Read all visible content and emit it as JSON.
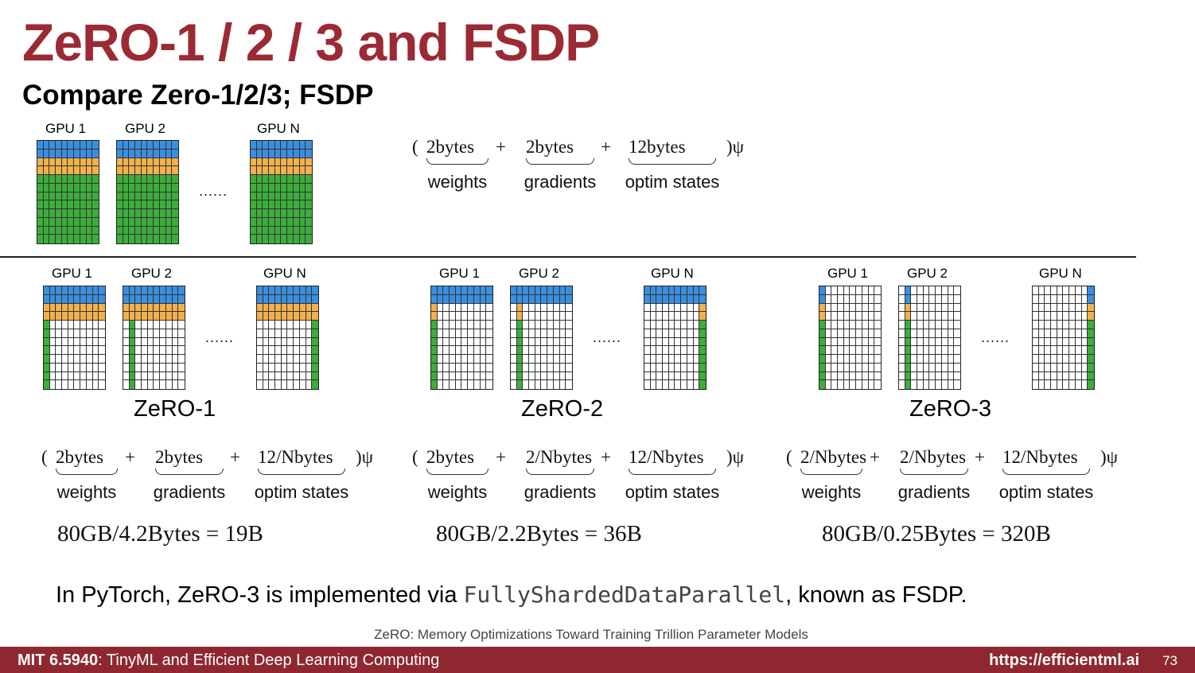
{
  "slide": {
    "title": "ZeRO-1 / 2 / 3 and FSDP",
    "subtitle": "Compare Zero-1/2/3; FSDP"
  },
  "gpu_labels": [
    "GPU 1",
    "GPU 2",
    "GPU N"
  ],
  "ellipsis": "......",
  "colors": {
    "weights": "#3a8fe0",
    "gradients": "#f2b14c",
    "optim": "#3cae3b",
    "empty": "#ffffff",
    "accent": "#9b2a35",
    "footer": "#8f2731"
  },
  "grid_layout": {
    "rows": 12,
    "cols": 10,
    "weight_rows": [
      0,
      1
    ],
    "gradient_rows": [
      2,
      3
    ],
    "optim_rows": [
      4,
      5,
      6,
      7,
      8,
      9,
      10,
      11
    ]
  },
  "baseline": {
    "formula": {
      "open": "( ",
      "terms": [
        {
          "value": "2bytes",
          "label": "weights"
        },
        {
          "value": "2bytes",
          "label": "gradients"
        },
        {
          "value": "12bytes",
          "label": "optim states"
        }
      ],
      "plus": "+",
      "close": ")ψ"
    }
  },
  "stages": [
    {
      "name": "ZeRO-1",
      "formula": {
        "open": "( ",
        "terms": [
          {
            "value": "2bytes",
            "label": "weights"
          },
          {
            "value": "2bytes",
            "label": "gradients"
          },
          {
            "value": "12/Nbytes",
            "label": "optim states"
          }
        ],
        "plus": "+",
        "close": ")ψ"
      },
      "calc": "80GB/4.2Bytes = 19B"
    },
    {
      "name": "ZeRO-2",
      "formula": {
        "open": "( ",
        "terms": [
          {
            "value": "2bytes",
            "label": "weights"
          },
          {
            "value": "2/Nbytes",
            "label": "gradients"
          },
          {
            "value": "12/Nbytes",
            "label": "optim states"
          }
        ],
        "plus": "+",
        "close": ")ψ"
      },
      "calc": "80GB/2.2Bytes = 36B"
    },
    {
      "name": "ZeRO-3",
      "formula": {
        "open": "(",
        "terms": [
          {
            "value": "2/Nbytes",
            "label": "weights"
          },
          {
            "value": "2/Nbytes",
            "label": "gradients"
          },
          {
            "value": "12/Nbytes",
            "label": "optim states"
          }
        ],
        "plus": "+",
        "close": ")ψ"
      },
      "calc": "80GB/0.25Bytes = 320B"
    }
  ],
  "note": {
    "before": "In PyTorch, ZeRO-3 is implemented via ",
    "code": "FullyShardedDataParallel",
    "after": ", known as FSDP."
  },
  "citation": "ZeRO: Memory Optimizations Toward Training Trillion Parameter Models",
  "footer": {
    "course_code": "MIT 6.5940",
    "course_name": ": TinyML and Efficient Deep Learning Computing",
    "url": "https://efficientml.ai",
    "page": "73"
  }
}
